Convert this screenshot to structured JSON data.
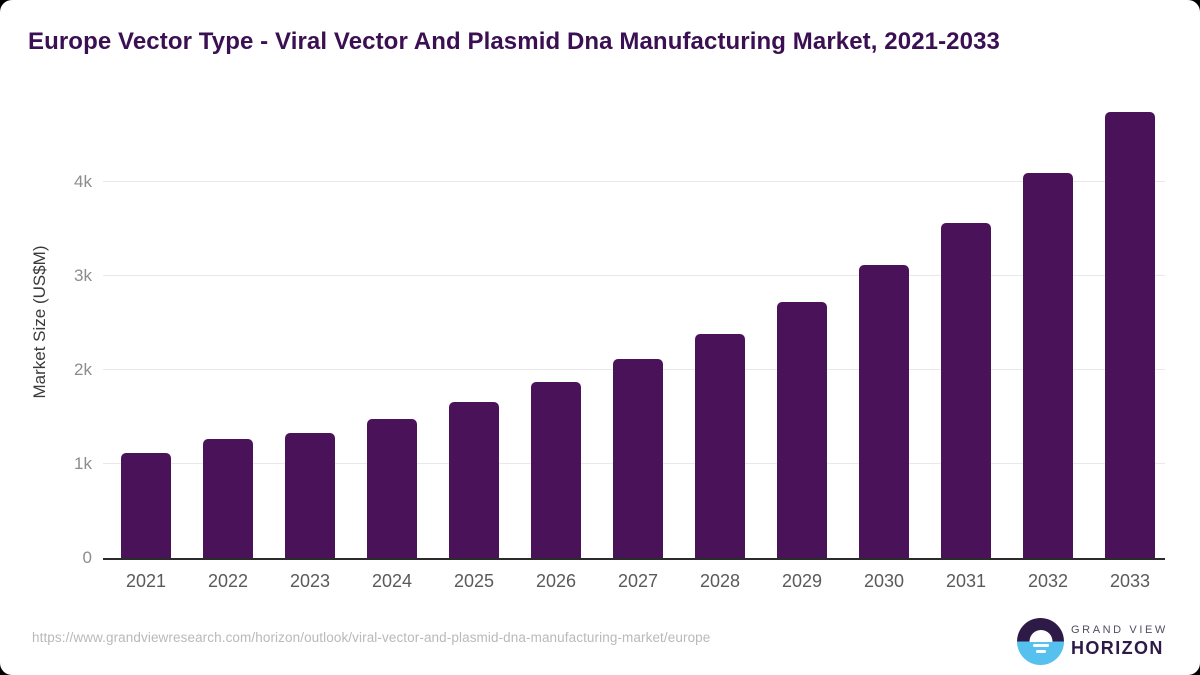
{
  "page": {
    "title": "Europe Vector Type - Viral Vector And Plasmid Dna Manufacturing Market, 2021-2033",
    "footer": {
      "source_url": "https://www.grandviewresearch.com/horizon/outlook/viral-vector-and-plasmid-dna-manufacturing-market/europe"
    },
    "logo": {
      "line1": "GRAND VIEW",
      "line2": "HORIZON"
    }
  },
  "chart_data": {
    "type": "bar",
    "title": "Europe Vector Type - Viral Vector And Plasmid Dna Manufacturing Market, 2021-2033",
    "categories": [
      "2021",
      "2022",
      "2023",
      "2024",
      "2025",
      "2026",
      "2027",
      "2028",
      "2029",
      "2030",
      "2031",
      "2032",
      "2033"
    ],
    "values": [
      1120,
      1265,
      1330,
      1480,
      1660,
      1870,
      2115,
      2385,
      2725,
      3120,
      3565,
      4095,
      4745
    ],
    "xlabel": "",
    "ylabel": "Market Size (US$M)",
    "ylim": [
      0,
      4872
    ],
    "yticks": [
      {
        "value": 0,
        "label": "0"
      },
      {
        "value": 1000,
        "label": "1k"
      },
      {
        "value": 2000,
        "label": "2k"
      },
      {
        "value": 3000,
        "label": "3k"
      },
      {
        "value": 4000,
        "label": "4k"
      }
    ],
    "grid": true,
    "legend": false,
    "units": "US$M"
  },
  "colors": {
    "bar": "#4a1259",
    "title_text": "#3b1053",
    "gridline": "#e8e8e8",
    "axis_line": "#2b2b2b",
    "y_tick_text": "#8c8c8c",
    "x_tick_text": "#5a5a5a",
    "url_text": "#b9b9b9",
    "logo_purple": "#2e1a47",
    "logo_blue": "#56c1ef",
    "card_bg": "#ffffff",
    "page_bg": "#000000"
  }
}
